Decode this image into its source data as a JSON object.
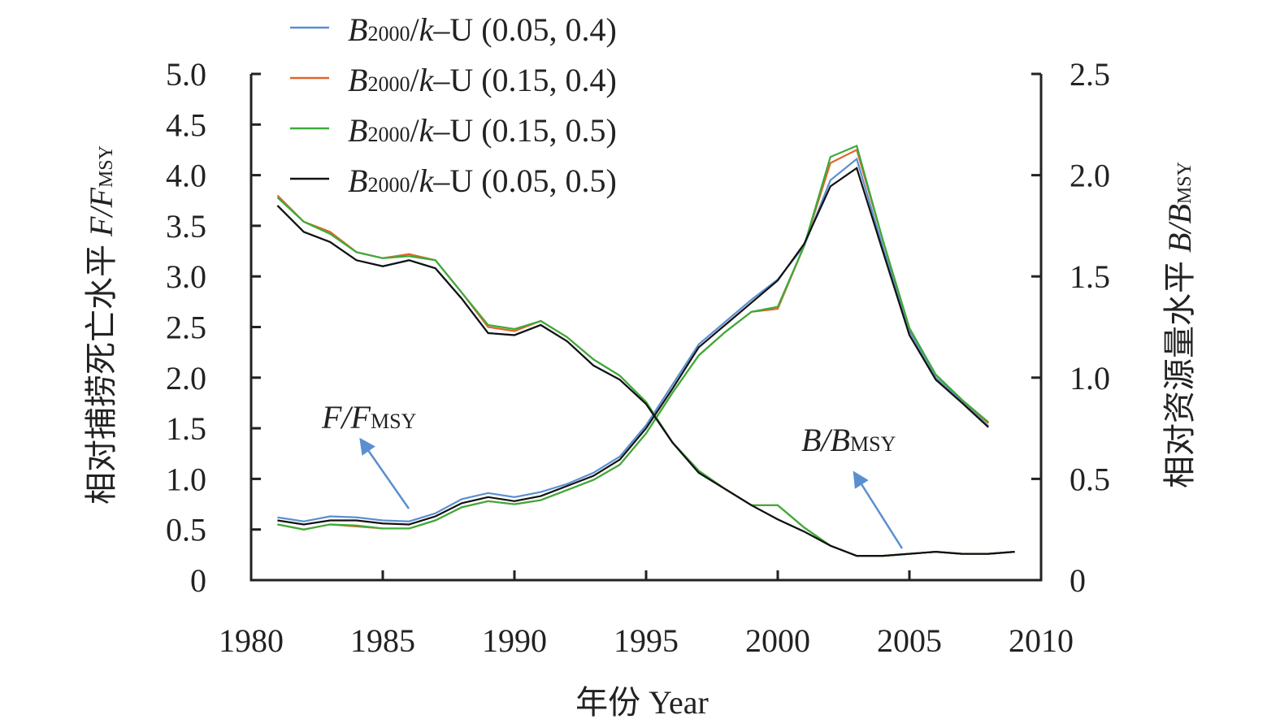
{
  "chart_data": {
    "type": "line",
    "xlabel": "年份 Year",
    "ylabel_left": {
      "main": "相对捕捞死亡水平 ",
      "sym": "F/F",
      "sub": "MSY"
    },
    "ylabel_right": {
      "main": "相对资源量水平 ",
      "sym": "B/B",
      "sub": "MSY"
    },
    "xlim": [
      1980,
      2010
    ],
    "ylim_left": [
      0,
      5
    ],
    "ylim_right": [
      0,
      2.5
    ],
    "xticks": [
      "1980",
      "1985",
      "1990",
      "1995",
      "2000",
      "2005",
      "2010"
    ],
    "yticks_left": [
      "0",
      "0.5",
      "1.0",
      "1.5",
      "2.0",
      "2.5",
      "3.0",
      "3.5",
      "4.0",
      "4.5",
      "5.0"
    ],
    "yticks_right": [
      "0",
      "0.5",
      "1.0",
      "1.5",
      "2.0",
      "2.5"
    ],
    "legend": {
      "placement": "top",
      "prefix": "B",
      "sub": "2000",
      "mid": "/k",
      "suffix": "–U "
    },
    "annotations": [
      {
        "sym": "F/F",
        "sub": "MSY"
      },
      {
        "sym": "B/B",
        "sub": "MSY"
      }
    ],
    "series": [
      {
        "name": "(0.05, 0.4)",
        "color": "#5b8fd0",
        "F": [
          0.62,
          0.58,
          0.63,
          0.62,
          0.59,
          0.58,
          0.66,
          0.8,
          0.86,
          0.82,
          0.87,
          0.95,
          1.06,
          1.22,
          1.53,
          1.93,
          2.33,
          2.55,
          2.77,
          2.97,
          3.3,
          3.95,
          4.16,
          3.28,
          2.46,
          2.0,
          1.77,
          1.52
        ],
        "B": [
          1.85,
          1.72,
          1.67,
          1.58,
          1.55,
          1.58,
          1.54,
          1.39,
          1.22,
          1.21,
          1.26,
          1.18,
          1.06,
          0.99,
          0.87,
          0.68,
          0.53,
          0.45,
          0.37,
          0.3,
          0.24,
          0.17,
          0.12,
          0.12,
          0.13,
          0.14,
          0.13,
          0.13,
          0.14
        ]
      },
      {
        "name": "(0.15, 0.4)",
        "color": "#e0642a",
        "F": [
          0.55,
          0.5,
          0.55,
          0.53,
          0.51,
          0.51,
          0.59,
          0.72,
          0.78,
          0.75,
          0.79,
          0.89,
          0.99,
          1.14,
          1.45,
          1.85,
          2.22,
          2.45,
          2.65,
          2.68,
          3.3,
          4.12,
          4.25,
          3.35,
          2.49,
          2.03,
          1.78,
          1.55
        ],
        "B": [
          1.9,
          1.77,
          1.72,
          1.62,
          1.59,
          1.61,
          1.58,
          1.42,
          1.25,
          1.23,
          1.28,
          1.2,
          1.09,
          1.01,
          0.88,
          0.68,
          0.54,
          0.45,
          0.37,
          0.37,
          0.26,
          0.17,
          0.12,
          0.12,
          0.13,
          0.14,
          0.13,
          0.13,
          0.14
        ]
      },
      {
        "name": "(0.15, 0.5)",
        "color": "#3aac3a",
        "F": [
          0.55,
          0.5,
          0.55,
          0.54,
          0.51,
          0.51,
          0.59,
          0.72,
          0.78,
          0.75,
          0.79,
          0.89,
          0.99,
          1.14,
          1.45,
          1.85,
          2.22,
          2.45,
          2.65,
          2.7,
          3.3,
          4.18,
          4.29,
          3.35,
          2.49,
          2.03,
          1.78,
          1.56
        ],
        "B": [
          1.89,
          1.77,
          1.71,
          1.62,
          1.59,
          1.6,
          1.58,
          1.42,
          1.26,
          1.24,
          1.28,
          1.2,
          1.09,
          1.01,
          0.88,
          0.68,
          0.54,
          0.45,
          0.37,
          0.37,
          0.26,
          0.17,
          0.12,
          0.12,
          0.13,
          0.14,
          0.13,
          0.13,
          0.14
        ]
      },
      {
        "name": "(0.05, 0.5)",
        "color": "#111111",
        "F": [
          0.59,
          0.55,
          0.59,
          0.59,
          0.56,
          0.55,
          0.63,
          0.76,
          0.82,
          0.78,
          0.83,
          0.93,
          1.03,
          1.19,
          1.5,
          1.89,
          2.3,
          2.52,
          2.74,
          2.96,
          3.32,
          3.89,
          4.07,
          3.24,
          2.42,
          1.98,
          1.75,
          1.51
        ],
        "B": [
          1.85,
          1.72,
          1.67,
          1.58,
          1.55,
          1.58,
          1.54,
          1.39,
          1.22,
          1.21,
          1.26,
          1.18,
          1.06,
          0.99,
          0.87,
          0.68,
          0.53,
          0.45,
          0.37,
          0.3,
          0.24,
          0.17,
          0.12,
          0.12,
          0.13,
          0.14,
          0.13,
          0.13,
          0.14
        ]
      }
    ],
    "x_start": 1981
  }
}
